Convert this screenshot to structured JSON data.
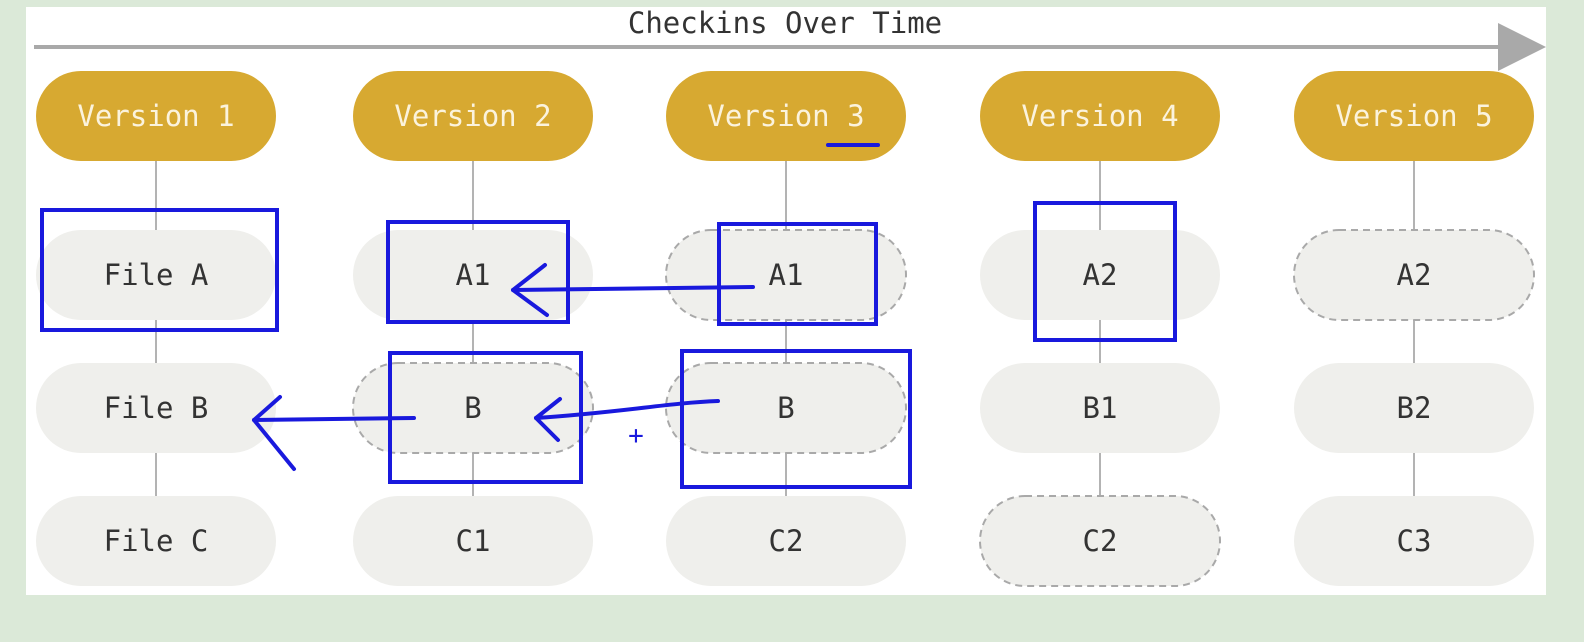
{
  "title": "Checkins Over Time",
  "colors": {
    "background": "#dbe9d8",
    "panel": "#ffffff",
    "version_fill": "#d7a931",
    "version_text": "#fbf3dd",
    "file_fill": "#efefec",
    "file_text": "#333333",
    "connector": "#b3b3b3",
    "dashed_border": "#a9a9a9",
    "timeline": "#a9a9a9",
    "annotation": "#1919dd"
  },
  "versions": [
    {
      "label": "Version 1",
      "files": [
        {
          "label": "File A",
          "style": "solid"
        },
        {
          "label": "File B",
          "style": "solid"
        },
        {
          "label": "File C",
          "style": "solid"
        }
      ]
    },
    {
      "label": "Version 2",
      "files": [
        {
          "label": "A1",
          "style": "solid"
        },
        {
          "label": "B",
          "style": "dashed"
        },
        {
          "label": "C1",
          "style": "solid"
        }
      ]
    },
    {
      "label": "Version 3",
      "files": [
        {
          "label": "A1",
          "style": "dashed"
        },
        {
          "label": "B",
          "style": "dashed"
        },
        {
          "label": "C2",
          "style": "solid"
        }
      ]
    },
    {
      "label": "Version 4",
      "files": [
        {
          "label": "A2",
          "style": "solid"
        },
        {
          "label": "B1",
          "style": "solid"
        },
        {
          "label": "C2",
          "style": "dashed"
        }
      ]
    },
    {
      "label": "Version 5",
      "files": [
        {
          "label": "A2",
          "style": "dashed"
        },
        {
          "label": "B2",
          "style": "solid"
        },
        {
          "label": "C3",
          "style": "solid"
        }
      ]
    }
  ],
  "annotations": {
    "plus": "+",
    "highlighted_boxes": [
      {
        "version": 1,
        "file": 1
      },
      {
        "version": 2,
        "file": 1
      },
      {
        "version": 3,
        "file": 1
      },
      {
        "version": 4,
        "file": 1
      },
      {
        "version": 2,
        "file": 2
      },
      {
        "version": 3,
        "file": 2
      }
    ]
  }
}
